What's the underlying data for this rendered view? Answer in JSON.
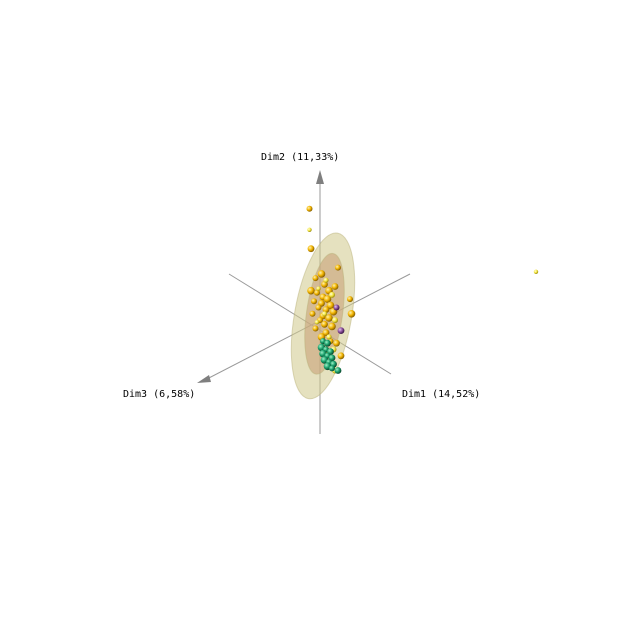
{
  "chart_data": {
    "type": "scatter",
    "subtype": "3d-pca",
    "axes": {
      "x": {
        "label": "Dim1 (14,52%)"
      },
      "y": {
        "label": "Dim2 (11,33%)"
      },
      "z": {
        "label": "Dim3 (6,58%)"
      }
    },
    "grid": false,
    "legend": "none",
    "colors": {
      "axis": "#9a9a9a",
      "arrow": "#7f7f7f",
      "gold": "#f2b400",
      "yellow": "#f5e642",
      "green": "#1aa06b",
      "purple": "#8a4f9c",
      "ellipse_outer": "#cfc98a",
      "ellipse_inner": "#c8a27a"
    },
    "groups": [
      {
        "color": "gold",
        "points": [
          [
            -0.35,
            2.6,
            0
          ],
          [
            -0.3,
            1.65,
            0
          ],
          [
            -0.3,
            0.65,
            0
          ],
          [
            0.6,
            1.2,
            0
          ],
          [
            0.5,
            0.75,
            0
          ],
          [
            0.05,
            1.05,
            0
          ],
          [
            -0.15,
            0.95,
            0
          ],
          [
            0.15,
            0.8,
            0
          ],
          [
            0.3,
            0.65,
            0
          ],
          [
            -0.1,
            0.6,
            0
          ],
          [
            0.1,
            0.5,
            0
          ],
          [
            0.25,
            0.45,
            0
          ],
          [
            -0.2,
            0.4,
            0
          ],
          [
            0.05,
            0.35,
            0
          ],
          [
            0.35,
            0.3,
            0
          ],
          [
            -0.05,
            0.25,
            0
          ],
          [
            0.2,
            0.2,
            0
          ],
          [
            0.45,
            0.15,
            0
          ],
          [
            -0.25,
            0.1,
            0
          ],
          [
            0.1,
            0.05,
            0
          ],
          [
            0.3,
            0.0,
            0
          ],
          [
            0.0,
            -0.05,
            0
          ],
          [
            0.15,
            -0.15,
            0
          ],
          [
            0.4,
            -0.2,
            0
          ],
          [
            -0.15,
            -0.25,
            0
          ],
          [
            0.2,
            -0.35,
            0
          ],
          [
            0.05,
            -0.45,
            0
          ],
          [
            0.35,
            -0.55,
            0
          ],
          [
            0.55,
            -0.6,
            0
          ],
          [
            1.05,
            0.1,
            0
          ],
          [
            1.0,
            0.45,
            0
          ],
          [
            0.7,
            -0.9,
            0
          ]
        ]
      },
      {
        "color": "yellow",
        "points": [
          [
            -0.35,
            2.1,
            0
          ],
          [
            0.2,
            0.9,
            0
          ],
          [
            0.4,
            0.55,
            0
          ],
          [
            -0.05,
            0.7,
            0
          ],
          [
            0.15,
            0.1,
            0
          ],
          [
            0.5,
            -0.05,
            0
          ],
          [
            -0.1,
            -0.1,
            0
          ],
          [
            0.3,
            -0.45,
            0
          ],
          [
            0.45,
            -0.75,
            0
          ],
          [
            0.2,
            -0.85,
            0
          ],
          [
            0.35,
            -1.05,
            0
          ],
          [
            0.5,
            -1.25,
            0
          ],
          [
            7.2,
            1.1,
            0
          ]
        ]
      },
      {
        "color": "green",
        "points": [
          [
            0.1,
            -0.55,
            0
          ],
          [
            0.25,
            -0.6,
            0
          ],
          [
            0.05,
            -0.7,
            0
          ],
          [
            0.2,
            -0.75,
            0
          ],
          [
            0.35,
            -0.8,
            0
          ],
          [
            0.1,
            -0.85,
            0
          ],
          [
            0.25,
            -0.9,
            0
          ],
          [
            0.4,
            -0.95,
            0
          ],
          [
            0.15,
            -1.0,
            0
          ],
          [
            0.3,
            -1.05,
            0
          ],
          [
            0.45,
            -1.1,
            0
          ],
          [
            0.25,
            -1.15,
            0
          ],
          [
            0.4,
            -1.2,
            0
          ],
          [
            0.6,
            -1.25,
            0
          ]
        ]
      },
      {
        "color": "purple",
        "points": [
          [
            0.55,
            0.25,
            0
          ],
          [
            0.7,
            -0.3,
            0
          ]
        ]
      }
    ],
    "ellipsoids": [
      {
        "color": "ellipse_outer",
        "center": [
          0.1,
          0.05,
          0
        ],
        "radii": [
          0.95,
          2.0
        ],
        "rotation_deg": 10
      },
      {
        "color": "ellipse_inner",
        "center": [
          0.15,
          0.1,
          0
        ],
        "radii": [
          0.6,
          1.45
        ],
        "rotation_deg": 8
      }
    ]
  }
}
